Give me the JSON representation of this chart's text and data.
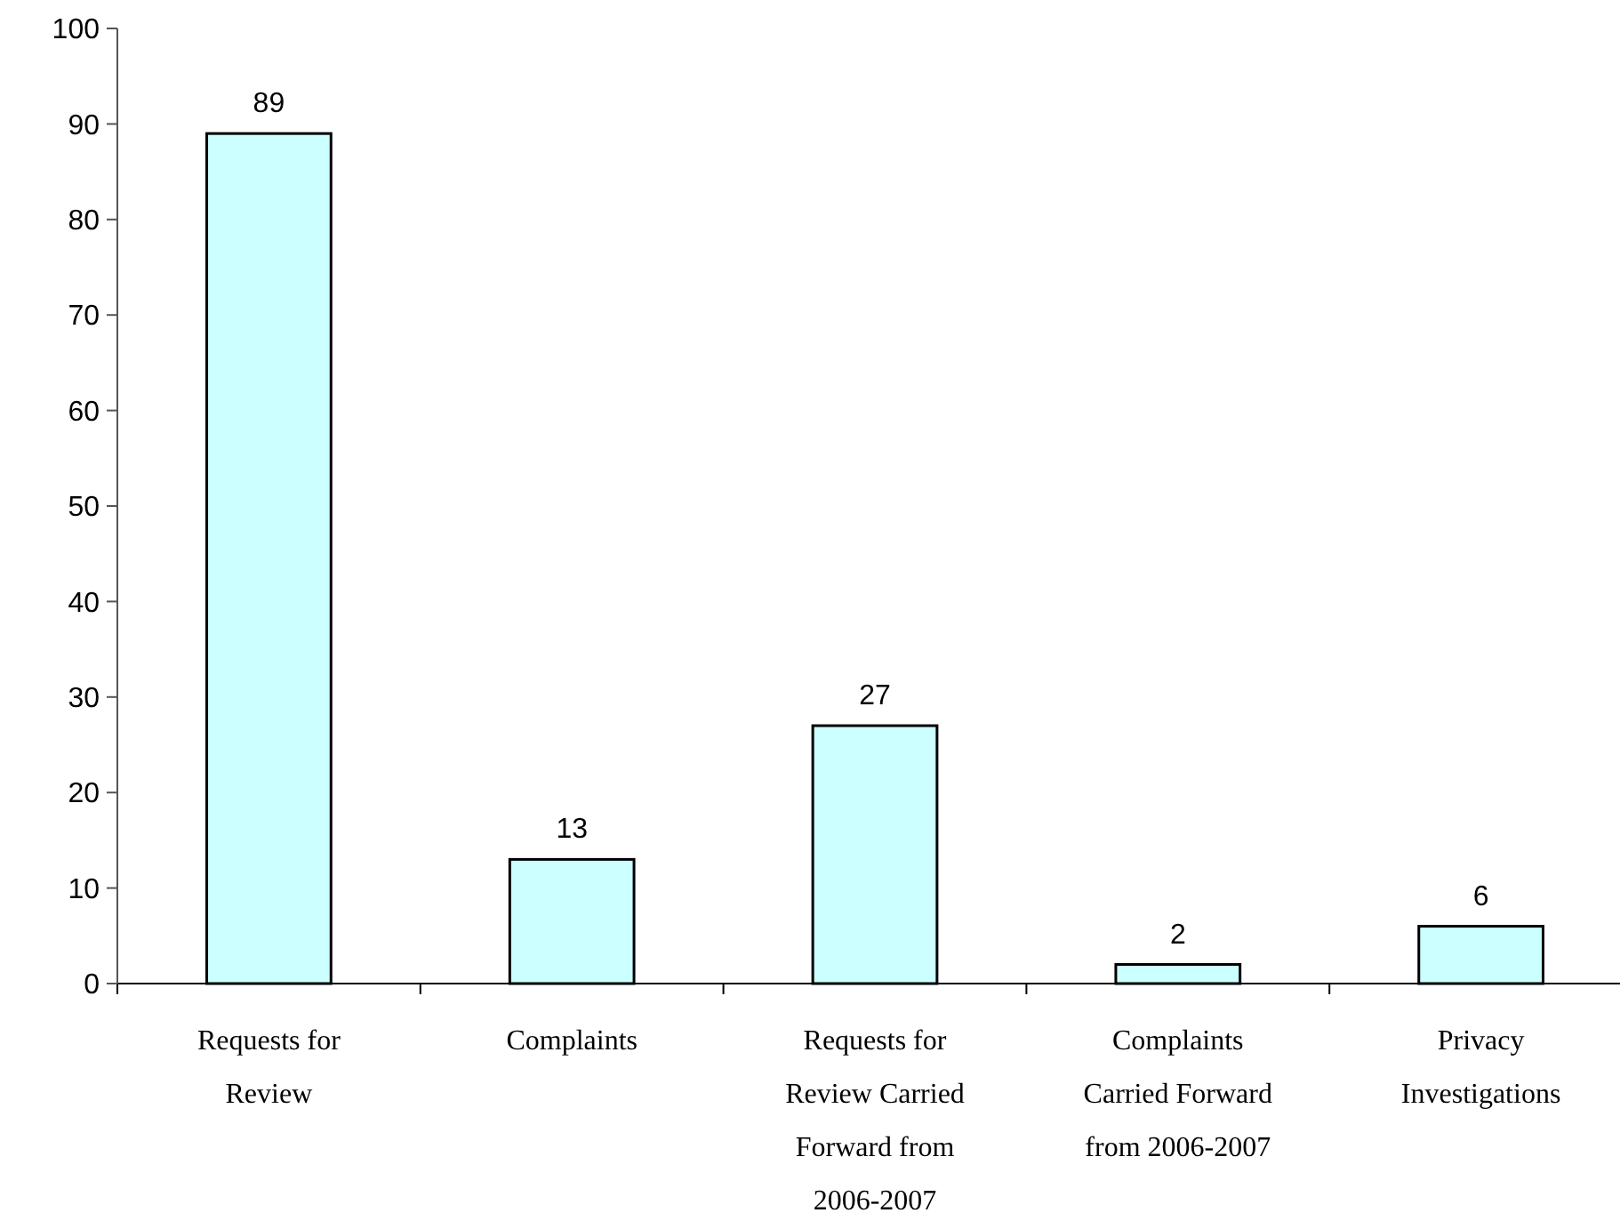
{
  "chart_data": {
    "type": "bar",
    "categories": [
      "Requests for Review",
      "Complaints",
      "Requests for Review Carried Forward from 2006-2007",
      "Complaints Carried Forward from 2006-2007",
      "Privacy Investigations"
    ],
    "values": [
      89,
      13,
      27,
      2,
      6
    ],
    "color": "#ccffff",
    "ylim": [
      0,
      100
    ],
    "yticks": [
      0,
      10,
      20,
      30,
      40,
      50,
      60,
      70,
      80,
      90,
      100
    ],
    "data_labels": true
  }
}
